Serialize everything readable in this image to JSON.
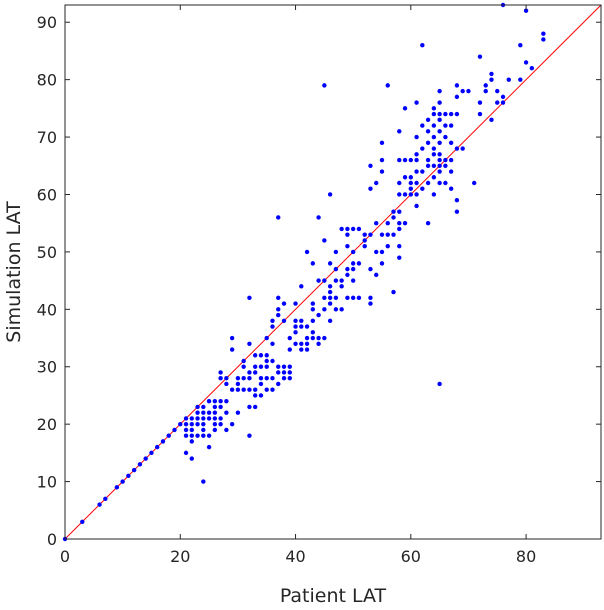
{
  "chart_data": {
    "type": "scatter",
    "title": "",
    "xlabel": "Patient LAT",
    "ylabel": "Simulation LAT",
    "xlim": [
      0,
      93
    ],
    "ylim": [
      0,
      93
    ],
    "xticks": [
      0,
      20,
      40,
      60,
      80
    ],
    "yticks": [
      0,
      10,
      20,
      30,
      40,
      50,
      60,
      70,
      80,
      90
    ],
    "grid": false,
    "legend": "none",
    "colors": {
      "points": "#0000ff",
      "reference_line": "#ff0000",
      "axes": "#262626"
    },
    "reference_line": {
      "from": [
        0,
        0
      ],
      "to": [
        93,
        93
      ]
    },
    "series": [
      {
        "points": [
          [
            0,
            0
          ],
          [
            3,
            3
          ],
          [
            6,
            6
          ],
          [
            7,
            7
          ],
          [
            9,
            9
          ],
          [
            10,
            10
          ],
          [
            11,
            11
          ],
          [
            12,
            12
          ],
          [
            13,
            13
          ],
          [
            14,
            14
          ],
          [
            15,
            15
          ],
          [
            16,
            16
          ],
          [
            17,
            17
          ],
          [
            18,
            18
          ],
          [
            19,
            19
          ],
          [
            20,
            20
          ],
          [
            21,
            21
          ],
          [
            21,
            15
          ],
          [
            21,
            18
          ],
          [
            21,
            19
          ],
          [
            21,
            20
          ],
          [
            22,
            14
          ],
          [
            22,
            17
          ],
          [
            22,
            18
          ],
          [
            22,
            19
          ],
          [
            22,
            20
          ],
          [
            22,
            21
          ],
          [
            23,
            18
          ],
          [
            23,
            20
          ],
          [
            23,
            21
          ],
          [
            23,
            22
          ],
          [
            23,
            23
          ],
          [
            24,
            10
          ],
          [
            24,
            18
          ],
          [
            24,
            19
          ],
          [
            24,
            20
          ],
          [
            24,
            21
          ],
          [
            24,
            22
          ],
          [
            24,
            23
          ],
          [
            25,
            16
          ],
          [
            25,
            18
          ],
          [
            25,
            21
          ],
          [
            25,
            22
          ],
          [
            25,
            24
          ],
          [
            26,
            19
          ],
          [
            26,
            20
          ],
          [
            26,
            21
          ],
          [
            26,
            22
          ],
          [
            26,
            23
          ],
          [
            26,
            24
          ],
          [
            27,
            20
          ],
          [
            27,
            21
          ],
          [
            27,
            23
          ],
          [
            27,
            24
          ],
          [
            27,
            28
          ],
          [
            27,
            29
          ],
          [
            28,
            19
          ],
          [
            28,
            22
          ],
          [
            28,
            24
          ],
          [
            28,
            27
          ],
          [
            28,
            28
          ],
          [
            29,
            20
          ],
          [
            29,
            26
          ],
          [
            29,
            33
          ],
          [
            29,
            35
          ],
          [
            30,
            22
          ],
          [
            30,
            26
          ],
          [
            30,
            27
          ],
          [
            30,
            28
          ],
          [
            31,
            26
          ],
          [
            31,
            28
          ],
          [
            31,
            30
          ],
          [
            31,
            31
          ],
          [
            32,
            18
          ],
          [
            32,
            23
          ],
          [
            32,
            26
          ],
          [
            32,
            28
          ],
          [
            32,
            29
          ],
          [
            32,
            34
          ],
          [
            32,
            42
          ],
          [
            33,
            23
          ],
          [
            33,
            25
          ],
          [
            33,
            26
          ],
          [
            33,
            29
          ],
          [
            33,
            30
          ],
          [
            33,
            32
          ],
          [
            34,
            25
          ],
          [
            34,
            27
          ],
          [
            34,
            28
          ],
          [
            34,
            30
          ],
          [
            34,
            32
          ],
          [
            35,
            26
          ],
          [
            35,
            28
          ],
          [
            35,
            30
          ],
          [
            35,
            31
          ],
          [
            35,
            32
          ],
          [
            35,
            35
          ],
          [
            36,
            26
          ],
          [
            36,
            28
          ],
          [
            36,
            31
          ],
          [
            36,
            34
          ],
          [
            36,
            37
          ],
          [
            36,
            38
          ],
          [
            37,
            27
          ],
          [
            37,
            29
          ],
          [
            37,
            30
          ],
          [
            37,
            39
          ],
          [
            37,
            40
          ],
          [
            37,
            42
          ],
          [
            37,
            56
          ],
          [
            38,
            28
          ],
          [
            38,
            29
          ],
          [
            38,
            30
          ],
          [
            38,
            38
          ],
          [
            38,
            41
          ],
          [
            39,
            28
          ],
          [
            39,
            29
          ],
          [
            39,
            30
          ],
          [
            39,
            33
          ],
          [
            39,
            35
          ],
          [
            40,
            34
          ],
          [
            40,
            36
          ],
          [
            40,
            37
          ],
          [
            40,
            38
          ],
          [
            40,
            41
          ],
          [
            41,
            33
          ],
          [
            41,
            34
          ],
          [
            41,
            37
          ],
          [
            41,
            38
          ],
          [
            41,
            44
          ],
          [
            42,
            33
          ],
          [
            42,
            34
          ],
          [
            42,
            35
          ],
          [
            42,
            37
          ],
          [
            42,
            50
          ],
          [
            43,
            35
          ],
          [
            43,
            36
          ],
          [
            43,
            38
          ],
          [
            43,
            40
          ],
          [
            43,
            41
          ],
          [
            43,
            48
          ],
          [
            44,
            34
          ],
          [
            44,
            35
          ],
          [
            44,
            39
          ],
          [
            44,
            45
          ],
          [
            44,
            56
          ],
          [
            45,
            35
          ],
          [
            45,
            40
          ],
          [
            45,
            42
          ],
          [
            45,
            45
          ],
          [
            45,
            52
          ],
          [
            45,
            79
          ],
          [
            46,
            38
          ],
          [
            46,
            41
          ],
          [
            46,
            42
          ],
          [
            46,
            43
          ],
          [
            46,
            44
          ],
          [
            46,
            48
          ],
          [
            46,
            60
          ],
          [
            47,
            40
          ],
          [
            47,
            42
          ],
          [
            47,
            45
          ],
          [
            47,
            47
          ],
          [
            47,
            50
          ],
          [
            48,
            40
          ],
          [
            48,
            44
          ],
          [
            48,
            45
          ],
          [
            48,
            54
          ],
          [
            49,
            42
          ],
          [
            49,
            46
          ],
          [
            49,
            47
          ],
          [
            49,
            51
          ],
          [
            49,
            53
          ],
          [
            49,
            54
          ],
          [
            50,
            42
          ],
          [
            50,
            45
          ],
          [
            50,
            47
          ],
          [
            50,
            48
          ],
          [
            50,
            50
          ],
          [
            50,
            54
          ],
          [
            51,
            42
          ],
          [
            51,
            48
          ],
          [
            51,
            54
          ],
          [
            52,
            51
          ],
          [
            52,
            52
          ],
          [
            52,
            53
          ],
          [
            53,
            41
          ],
          [
            53,
            42
          ],
          [
            53,
            47
          ],
          [
            53,
            53
          ],
          [
            53,
            61
          ],
          [
            53,
            65
          ],
          [
            54,
            46
          ],
          [
            54,
            50
          ],
          [
            54,
            55
          ],
          [
            54,
            62
          ],
          [
            55,
            48
          ],
          [
            55,
            50
          ],
          [
            55,
            53
          ],
          [
            55,
            64
          ],
          [
            55,
            66
          ],
          [
            55,
            69
          ],
          [
            56,
            51
          ],
          [
            56,
            53
          ],
          [
            56,
            55
          ],
          [
            56,
            79
          ],
          [
            57,
            43
          ],
          [
            57,
            53
          ],
          [
            57,
            56
          ],
          [
            57,
            57
          ],
          [
            58,
            49
          ],
          [
            58,
            51
          ],
          [
            58,
            54
          ],
          [
            58,
            55
          ],
          [
            58,
            57
          ],
          [
            58,
            60
          ],
          [
            58,
            62
          ],
          [
            58,
            66
          ],
          [
            58,
            71
          ],
          [
            59,
            55
          ],
          [
            59,
            60
          ],
          [
            59,
            63
          ],
          [
            59,
            66
          ],
          [
            59,
            75
          ],
          [
            60,
            60
          ],
          [
            60,
            61
          ],
          [
            60,
            62
          ],
          [
            60,
            63
          ],
          [
            60,
            66
          ],
          [
            61,
            58
          ],
          [
            61,
            60
          ],
          [
            61,
            62
          ],
          [
            61,
            64
          ],
          [
            61,
            66
          ],
          [
            61,
            67
          ],
          [
            61,
            70
          ],
          [
            61,
            76
          ],
          [
            62,
            61
          ],
          [
            62,
            64
          ],
          [
            62,
            68
          ],
          [
            62,
            72
          ],
          [
            62,
            86
          ],
          [
            63,
            55
          ],
          [
            63,
            62
          ],
          [
            63,
            65
          ],
          [
            63,
            66
          ],
          [
            63,
            69
          ],
          [
            63,
            71
          ],
          [
            63,
            73
          ],
          [
            64,
            60
          ],
          [
            64,
            63
          ],
          [
            64,
            65
          ],
          [
            64,
            67
          ],
          [
            64,
            68
          ],
          [
            64,
            70
          ],
          [
            64,
            72
          ],
          [
            64,
            74
          ],
          [
            64,
            75
          ],
          [
            65,
            27
          ],
          [
            65,
            62
          ],
          [
            65,
            64
          ],
          [
            65,
            65
          ],
          [
            65,
            66
          ],
          [
            65,
            67
          ],
          [
            65,
            69
          ],
          [
            65,
            71
          ],
          [
            65,
            73
          ],
          [
            65,
            74
          ],
          [
            65,
            76
          ],
          [
            65,
            78
          ],
          [
            66,
            62
          ],
          [
            66,
            65
          ],
          [
            66,
            66
          ],
          [
            66,
            70
          ],
          [
            66,
            72
          ],
          [
            66,
            74
          ],
          [
            67,
            61
          ],
          [
            67,
            64
          ],
          [
            67,
            66
          ],
          [
            67,
            69
          ],
          [
            67,
            72
          ],
          [
            67,
            74
          ],
          [
            68,
            57
          ],
          [
            68,
            59
          ],
          [
            68,
            68
          ],
          [
            68,
            74
          ],
          [
            68,
            77
          ],
          [
            68,
            79
          ],
          [
            69,
            68
          ],
          [
            69,
            78
          ],
          [
            70,
            78
          ],
          [
            71,
            62
          ],
          [
            72,
            74
          ],
          [
            72,
            76
          ],
          [
            72,
            84
          ],
          [
            73,
            78
          ],
          [
            73,
            79
          ],
          [
            74,
            73
          ],
          [
            74,
            80
          ],
          [
            74,
            81
          ],
          [
            75,
            76
          ],
          [
            75,
            78
          ],
          [
            76,
            76
          ],
          [
            76,
            77
          ],
          [
            76,
            93
          ],
          [
            77,
            80
          ],
          [
            79,
            80
          ],
          [
            79,
            86
          ],
          [
            80,
            83
          ],
          [
            80,
            92
          ],
          [
            81,
            82
          ],
          [
            83,
            87
          ],
          [
            83,
            88
          ]
        ]
      }
    ]
  }
}
